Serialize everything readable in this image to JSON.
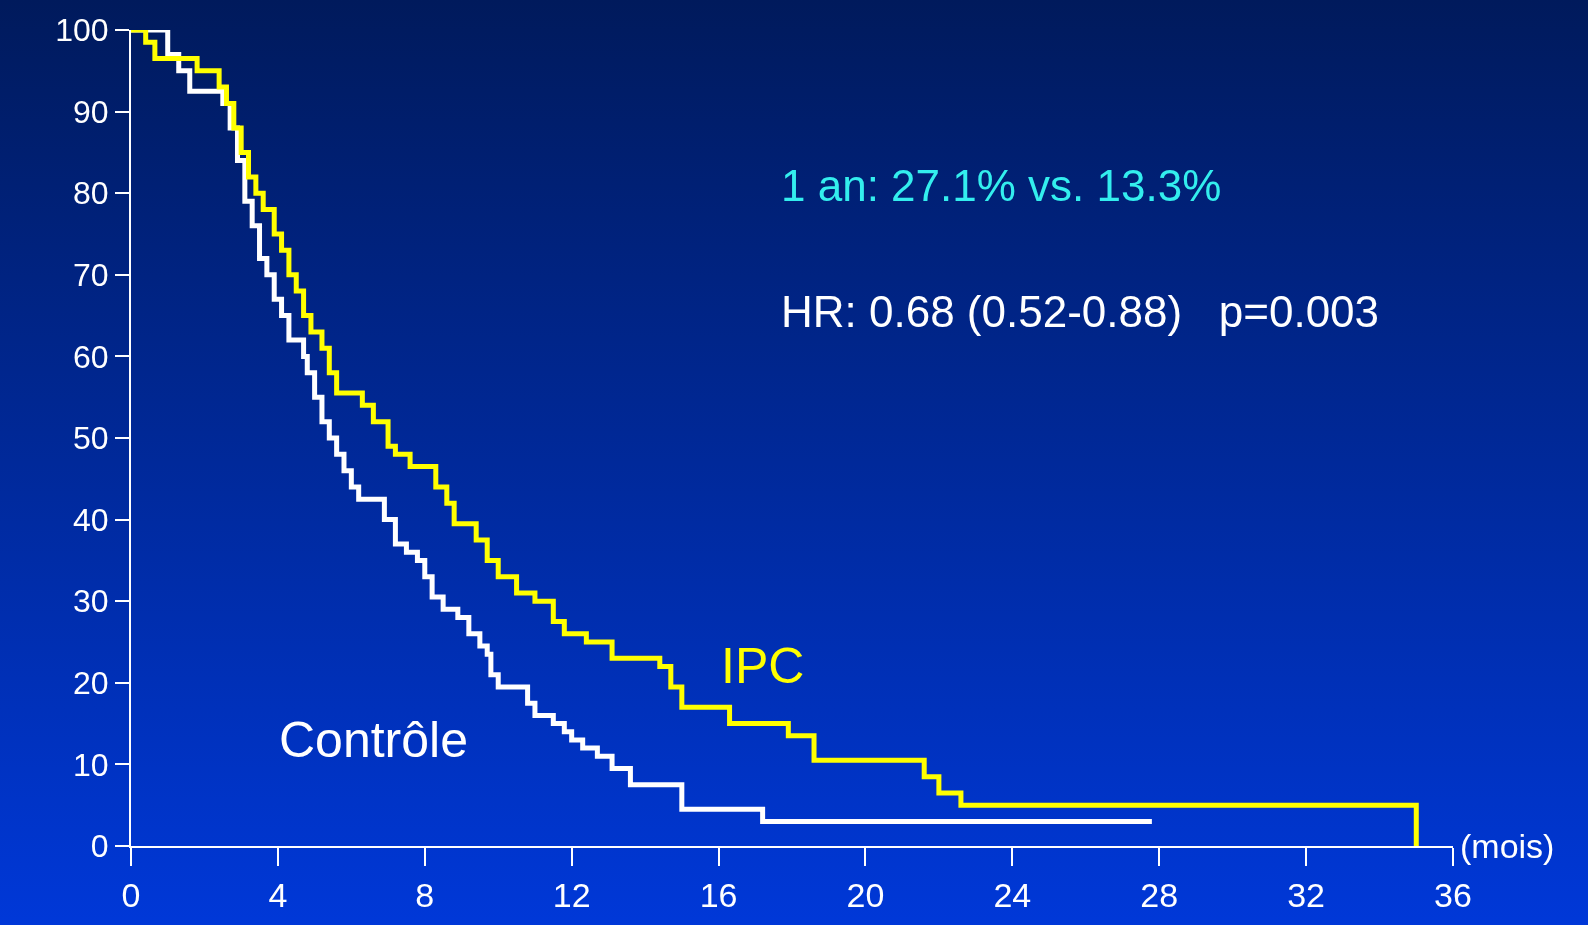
{
  "chart_data": {
    "type": "step",
    "xlabel": "(mois)",
    "xlim": [
      0,
      36
    ],
    "xticks": [
      0,
      4,
      8,
      12,
      16,
      20,
      24,
      28,
      32,
      36
    ],
    "ylim": [
      0,
      100
    ],
    "yticks": [
      0,
      10,
      20,
      30,
      40,
      50,
      60,
      70,
      80,
      90,
      100
    ],
    "grid": false,
    "legend": false,
    "marker": "none",
    "line_style": "solid",
    "annotations": [
      "1 an: 27.1% vs. 13.3%",
      "HR: 0.68 (0.52-0.88)   p=0.003"
    ],
    "series": [
      {
        "name": "IPC",
        "color": "#ffff00",
        "x": [
          0,
          0.4,
          0.65,
          1.8,
          2.4,
          2.6,
          2.8,
          3.0,
          3.2,
          3.4,
          3.6,
          3.9,
          4.1,
          4.3,
          4.5,
          4.7,
          4.9,
          5.2,
          5.4,
          5.6,
          6.3,
          6.6,
          7.0,
          7.2,
          7.6,
          8.3,
          8.6,
          8.8,
          9.4,
          9.7,
          10.0,
          10.5,
          11.0,
          11.5,
          11.8,
          12.4,
          13.1,
          14.4,
          14.7,
          15.0,
          16.3,
          17.9,
          18.6,
          21.6,
          22.0,
          22.6,
          35.0,
          35.0
        ],
        "values": [
          100,
          98.5,
          96.5,
          95,
          93,
          91,
          88,
          85,
          82,
          80,
          78,
          75,
          73,
          70,
          68,
          65,
          63,
          61,
          58,
          55.5,
          54,
          52,
          49,
          48,
          46.5,
          44,
          42,
          39.5,
          37.5,
          35,
          33,
          31,
          30,
          27.5,
          26,
          25,
          23,
          22,
          19.5,
          17,
          15,
          13.5,
          10.5,
          8.5,
          6.5,
          5,
          5,
          0
        ]
      },
      {
        "name": "Contrôle",
        "color": "#ffffff",
        "x": [
          0,
          0.8,
          1.0,
          1.3,
          1.6,
          2.3,
          2.5,
          2.7,
          2.9,
          3.1,
          3.3,
          3.5,
          3.7,
          3.9,
          4.1,
          4.3,
          4.7,
          4.8,
          5.0,
          5.2,
          5.4,
          5.6,
          5.8,
          6.0,
          6.2,
          6.8,
          6.9,
          7.2,
          7.5,
          7.8,
          8.0,
          8.2,
          8.5,
          8.9,
          9.2,
          9.5,
          9.7,
          9.8,
          10.0,
          10.8,
          11.0,
          11.5,
          11.8,
          12.0,
          12.3,
          12.7,
          13.1,
          13.6,
          15.0,
          17.2,
          27.8
        ],
        "values": [
          100,
          100,
          97,
          95,
          92.5,
          92.5,
          91,
          88,
          84,
          79,
          76,
          72,
          70,
          67,
          65,
          62,
          60,
          58,
          55,
          52,
          50,
          48,
          46,
          44,
          42.5,
          42.5,
          40,
          37,
          36,
          35,
          33,
          30.5,
          29,
          28,
          26,
          24.5,
          23.5,
          21,
          19.5,
          17.5,
          16,
          15,
          14,
          13,
          12,
          11,
          9.5,
          7.5,
          4.5,
          3,
          3
        ]
      }
    ]
  }
}
